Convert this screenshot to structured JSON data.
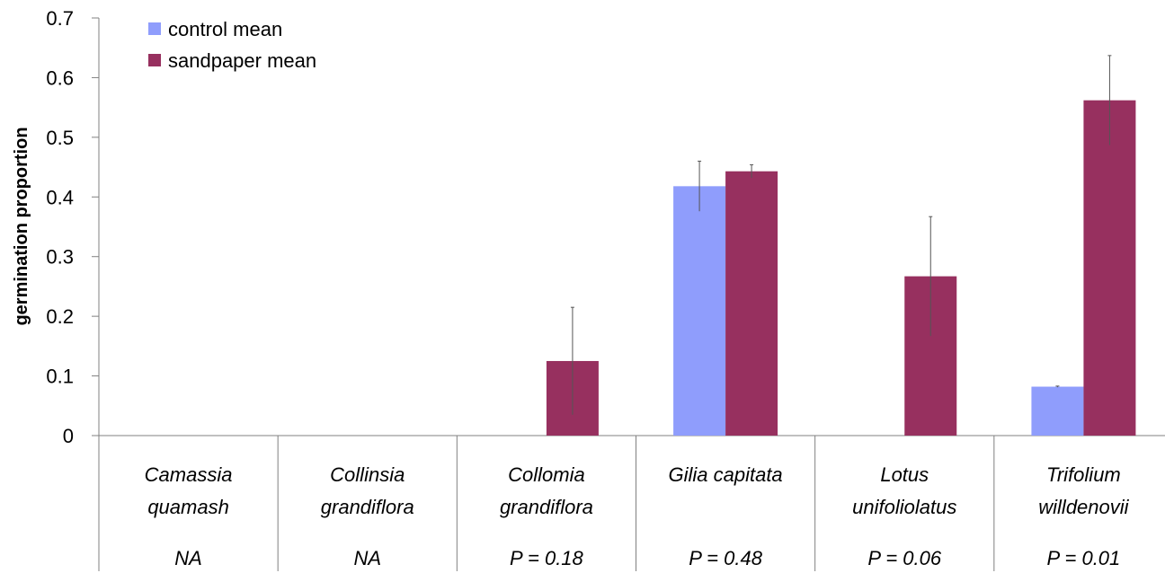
{
  "chart_data": {
    "type": "bar",
    "ylabel": "germination proportion",
    "xlabel": "",
    "ylim": [
      0,
      0.7
    ],
    "yticks": [
      "0",
      "0.1",
      "0.2",
      "0.3",
      "0.4",
      "0.5",
      "0.6",
      "0.7"
    ],
    "grid": false,
    "legend_position": "top-left",
    "categories": [
      [
        "Camassia",
        "quamash"
      ],
      [
        "Collinsia",
        "grandiflora"
      ],
      [
        "Collomia",
        "grandiflora"
      ],
      [
        "Gilia capitata"
      ],
      [
        "Lotus",
        "unifoliolatus"
      ],
      [
        "Trifolium",
        "willdenovii"
      ]
    ],
    "p_values": [
      "NA",
      "NA",
      "P = 0.18",
      "P = 0.48",
      "P = 0.06",
      "P = 0.01"
    ],
    "series": [
      {
        "name": "control mean",
        "color": "#8f9dfc",
        "values": [
          0,
          0,
          0,
          0.418,
          0,
          0.082
        ],
        "error": [
          0,
          0,
          0,
          0.042,
          0,
          0.001
        ]
      },
      {
        "name": "sandpaper mean",
        "color": "#97305f",
        "values": [
          0,
          0,
          0.125,
          0.443,
          0.267,
          0.562
        ],
        "error": [
          0,
          0,
          0.09,
          0.011,
          0.1,
          0.075
        ]
      }
    ]
  }
}
